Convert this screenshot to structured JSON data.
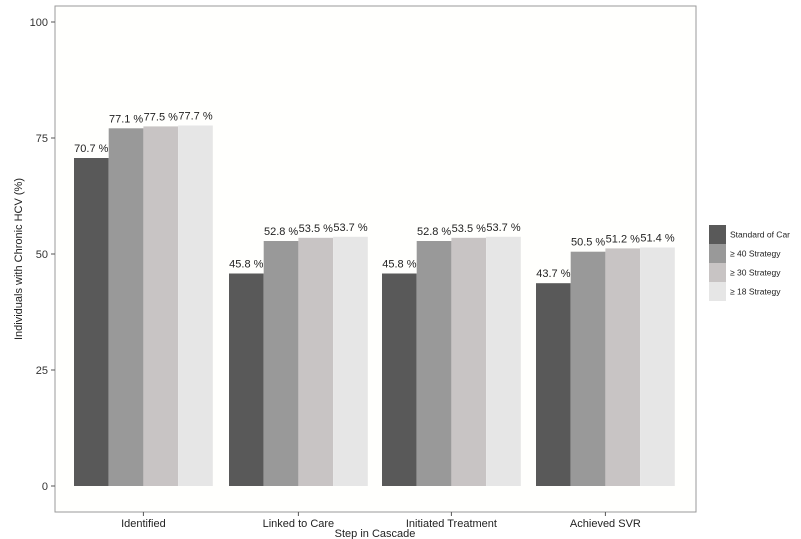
{
  "chart_data": {
    "type": "bar",
    "title": "",
    "xlabel": "Step in Cascade",
    "ylabel": "Individuals with Chronic HCV (%)",
    "ylim": [
      0,
      100
    ],
    "yticks": [
      0,
      25,
      50,
      75,
      100
    ],
    "grid": false,
    "legend_position": "right",
    "categories": [
      "Identified",
      "Linked to Care",
      "Initiated Treatment",
      "Achieved SVR"
    ],
    "series": [
      {
        "name": "Standard of Car",
        "color": "#595959",
        "values": [
          70.7,
          45.8,
          45.8,
          43.7
        ],
        "labels": [
          "70.7 %",
          "45.8 %",
          "45.8 %",
          "43.7 %"
        ]
      },
      {
        "name": "≥ 40 Strategy",
        "color": "#999999",
        "values": [
          77.1,
          52.8,
          52.8,
          50.5
        ],
        "labels": [
          "77.1 %",
          "52.8 %",
          "52.8 %",
          "50.5 %"
        ]
      },
      {
        "name": "≥ 30 Strategy",
        "color": "#c8c4c4",
        "values": [
          77.5,
          53.5,
          53.5,
          51.2
        ],
        "labels": [
          "77.5 %",
          "53.5 %",
          "53.5 %",
          "51.2 %"
        ]
      },
      {
        "name": "≥ 18 Strategy",
        "color": "#e6e6e6",
        "values": [
          77.7,
          53.7,
          53.7,
          51.4
        ],
        "labels": [
          "77.7 %",
          "53.7 %",
          "53.7 %",
          "51.4 %"
        ]
      }
    ]
  }
}
